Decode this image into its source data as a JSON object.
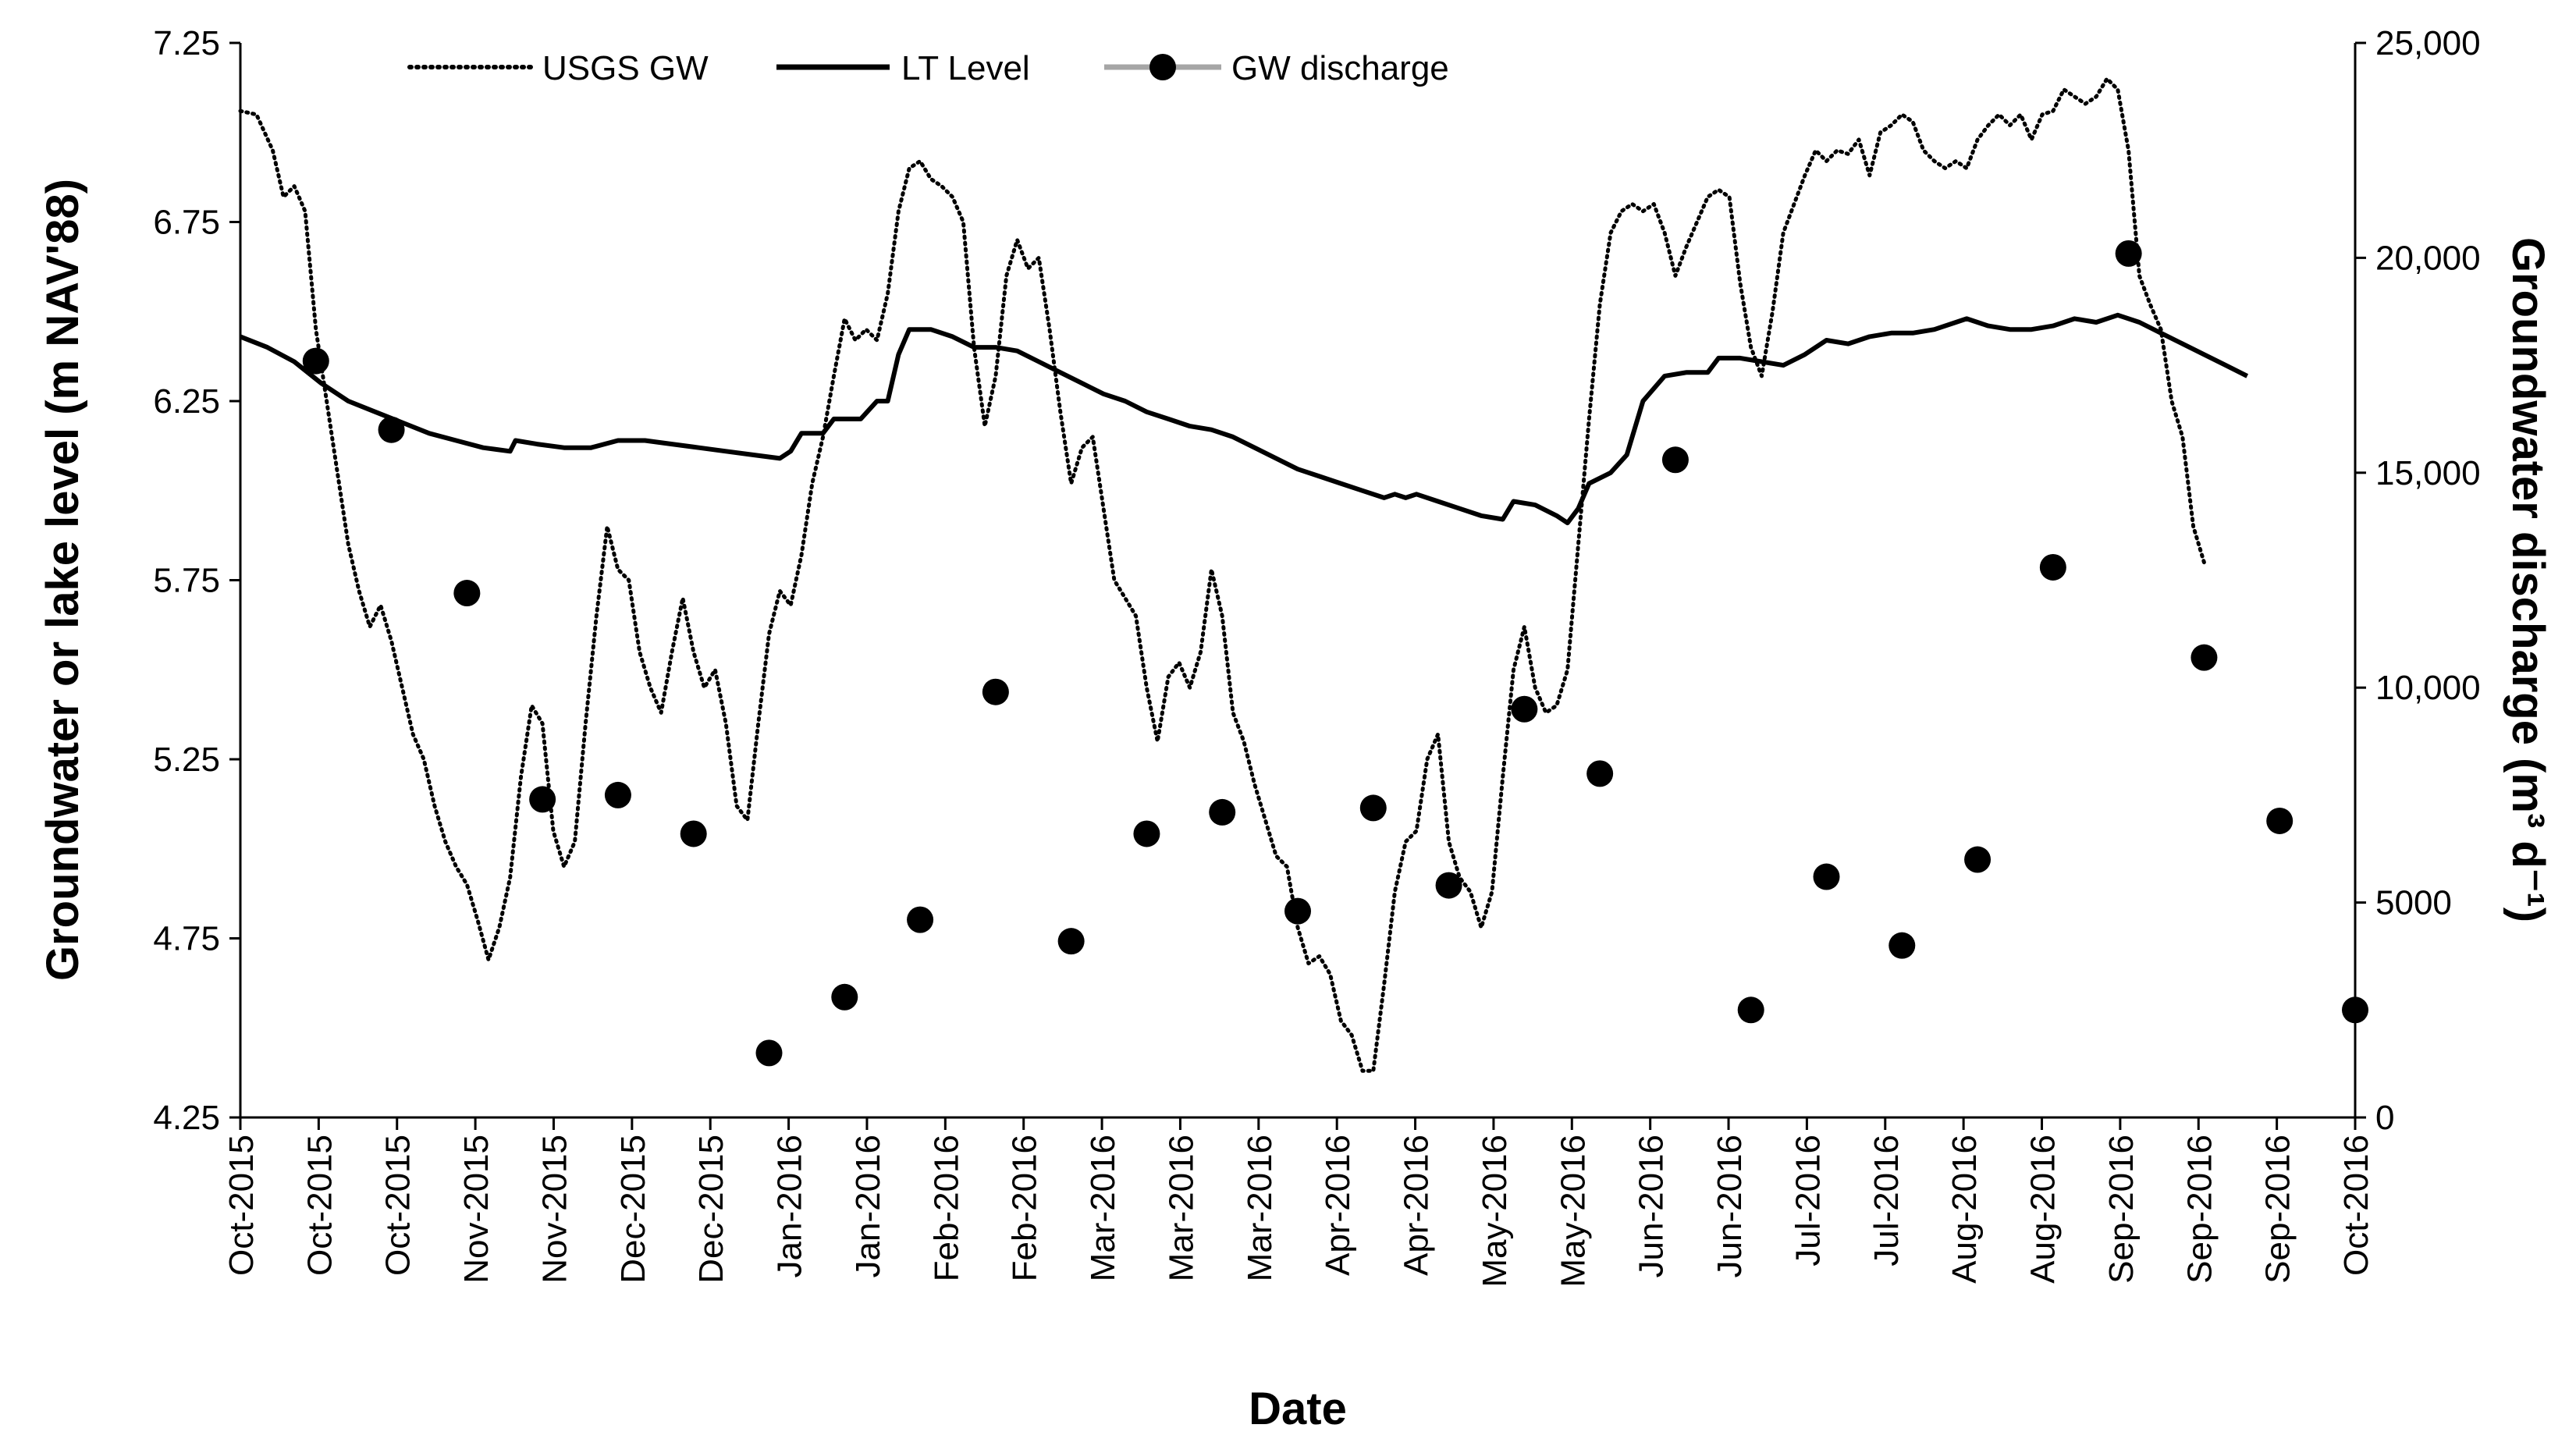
{
  "chart_data": {
    "type": "line",
    "xlabel": "Date",
    "ylabel_left": "Groundwater or lake level (m NAV'88)",
    "ylabel_right": "Groundwater discharge (m³ d⁻¹)",
    "ylim_left": [
      4.25,
      7.25
    ],
    "ylim_right": [
      0,
      25000
    ],
    "yticks_left": [
      "4.25",
      "4.75",
      "5.25",
      "5.75",
      "6.25",
      "6.75",
      "7.25"
    ],
    "yticks_right": [
      "0",
      "5000",
      "10,000",
      "15,000",
      "20,000",
      "25,000"
    ],
    "x_tick_labels": [
      "Oct-2015",
      "Oct-2015",
      "Oct-2015",
      "Nov-2015",
      "Nov-2015",
      "Dec-2015",
      "Dec-2015",
      "Jan-2016",
      "Jan-2016",
      "Feb-2016",
      "Feb-2016",
      "Mar-2016",
      "Mar-2016",
      "Mar-2016",
      "Apr-2016",
      "Apr-2016",
      "May-2016",
      "May-2016",
      "Jun-2016",
      "Jun-2016",
      "Jul-2016",
      "Jul-2016",
      "Aug-2016",
      "Aug-2016",
      "Sep-2016",
      "Sep-2016",
      "Sep-2016",
      "Oct-2016"
    ],
    "x_range_days": [
      0,
      392
    ],
    "legend": [
      "USGS GW",
      "LT Level",
      "GW discharge"
    ],
    "series": [
      {
        "name": "USGS GW",
        "axis": "left",
        "style": "dotted",
        "points": [
          [
            0,
            7.06
          ],
          [
            3,
            7.05
          ],
          [
            6,
            6.95
          ],
          [
            8,
            6.82
          ],
          [
            10,
            6.85
          ],
          [
            12,
            6.78
          ],
          [
            14,
            6.45
          ],
          [
            16,
            6.25
          ],
          [
            18,
            6.05
          ],
          [
            20,
            5.85
          ],
          [
            22,
            5.72
          ],
          [
            24,
            5.62
          ],
          [
            26,
            5.68
          ],
          [
            28,
            5.58
          ],
          [
            30,
            5.45
          ],
          [
            32,
            5.32
          ],
          [
            34,
            5.25
          ],
          [
            36,
            5.12
          ],
          [
            38,
            5.02
          ],
          [
            40,
            4.95
          ],
          [
            42,
            4.9
          ],
          [
            44,
            4.8
          ],
          [
            46,
            4.69
          ],
          [
            48,
            4.78
          ],
          [
            50,
            4.92
          ],
          [
            52,
            5.2
          ],
          [
            54,
            5.4
          ],
          [
            56,
            5.35
          ],
          [
            58,
            5.05
          ],
          [
            60,
            4.95
          ],
          [
            62,
            5.02
          ],
          [
            64,
            5.35
          ],
          [
            66,
            5.65
          ],
          [
            68,
            5.9
          ],
          [
            70,
            5.78
          ],
          [
            72,
            5.75
          ],
          [
            74,
            5.55
          ],
          [
            76,
            5.45
          ],
          [
            78,
            5.38
          ],
          [
            80,
            5.55
          ],
          [
            82,
            5.7
          ],
          [
            84,
            5.55
          ],
          [
            86,
            5.45
          ],
          [
            88,
            5.5
          ],
          [
            90,
            5.35
          ],
          [
            92,
            5.12
          ],
          [
            94,
            5.08
          ],
          [
            96,
            5.35
          ],
          [
            98,
            5.6
          ],
          [
            100,
            5.72
          ],
          [
            102,
            5.68
          ],
          [
            104,
            5.82
          ],
          [
            106,
            6.02
          ],
          [
            108,
            6.15
          ],
          [
            110,
            6.32
          ],
          [
            112,
            6.48
          ],
          [
            114,
            6.42
          ],
          [
            116,
            6.45
          ],
          [
            118,
            6.42
          ],
          [
            120,
            6.55
          ],
          [
            122,
            6.78
          ],
          [
            124,
            6.9
          ],
          [
            126,
            6.92
          ],
          [
            128,
            6.87
          ],
          [
            130,
            6.85
          ],
          [
            132,
            6.82
          ],
          [
            134,
            6.75
          ],
          [
            136,
            6.4
          ],
          [
            138,
            6.18
          ],
          [
            140,
            6.32
          ],
          [
            142,
            6.6
          ],
          [
            144,
            6.7
          ],
          [
            146,
            6.62
          ],
          [
            148,
            6.65
          ],
          [
            150,
            6.45
          ],
          [
            152,
            6.22
          ],
          [
            154,
            6.02
          ],
          [
            156,
            6.12
          ],
          [
            158,
            6.15
          ],
          [
            160,
            5.95
          ],
          [
            162,
            5.75
          ],
          [
            164,
            5.7
          ],
          [
            166,
            5.65
          ],
          [
            168,
            5.45
          ],
          [
            170,
            5.3
          ],
          [
            172,
            5.48
          ],
          [
            174,
            5.52
          ],
          [
            176,
            5.45
          ],
          [
            178,
            5.55
          ],
          [
            180,
            5.78
          ],
          [
            182,
            5.65
          ],
          [
            184,
            5.38
          ],
          [
            186,
            5.3
          ],
          [
            188,
            5.18
          ],
          [
            190,
            5.08
          ],
          [
            192,
            4.98
          ],
          [
            194,
            4.95
          ],
          [
            196,
            4.78
          ],
          [
            198,
            4.68
          ],
          [
            200,
            4.7
          ],
          [
            202,
            4.65
          ],
          [
            204,
            4.52
          ],
          [
            206,
            4.48
          ],
          [
            208,
            4.38
          ],
          [
            210,
            4.38
          ],
          [
            212,
            4.62
          ],
          [
            214,
            4.88
          ],
          [
            216,
            5.02
          ],
          [
            218,
            5.05
          ],
          [
            220,
            5.25
          ],
          [
            222,
            5.32
          ],
          [
            224,
            5.02
          ],
          [
            226,
            4.92
          ],
          [
            228,
            4.88
          ],
          [
            230,
            4.78
          ],
          [
            232,
            4.88
          ],
          [
            234,
            5.2
          ],
          [
            236,
            5.5
          ],
          [
            238,
            5.62
          ],
          [
            240,
            5.45
          ],
          [
            242,
            5.38
          ],
          [
            244,
            5.4
          ],
          [
            246,
            5.5
          ],
          [
            248,
            5.85
          ],
          [
            250,
            6.2
          ],
          [
            252,
            6.52
          ],
          [
            254,
            6.72
          ],
          [
            256,
            6.78
          ],
          [
            258,
            6.8
          ],
          [
            260,
            6.78
          ],
          [
            262,
            6.8
          ],
          [
            264,
            6.72
          ],
          [
            266,
            6.6
          ],
          [
            268,
            6.68
          ],
          [
            270,
            6.75
          ],
          [
            272,
            6.82
          ],
          [
            274,
            6.84
          ],
          [
            276,
            6.82
          ],
          [
            278,
            6.58
          ],
          [
            280,
            6.4
          ],
          [
            282,
            6.32
          ],
          [
            284,
            6.5
          ],
          [
            286,
            6.72
          ],
          [
            288,
            6.8
          ],
          [
            290,
            6.88
          ],
          [
            292,
            6.95
          ],
          [
            294,
            6.92
          ],
          [
            296,
            6.95
          ],
          [
            298,
            6.94
          ],
          [
            300,
            6.98
          ],
          [
            302,
            6.88
          ],
          [
            304,
            7.0
          ],
          [
            306,
            7.02
          ],
          [
            308,
            7.05
          ],
          [
            310,
            7.03
          ],
          [
            312,
            6.95
          ],
          [
            314,
            6.92
          ],
          [
            316,
            6.9
          ],
          [
            318,
            6.92
          ],
          [
            320,
            6.9
          ],
          [
            322,
            6.98
          ],
          [
            324,
            7.02
          ],
          [
            326,
            7.05
          ],
          [
            328,
            7.02
          ],
          [
            330,
            7.05
          ],
          [
            332,
            6.98
          ],
          [
            334,
            7.05
          ],
          [
            336,
            7.06
          ],
          [
            338,
            7.12
          ],
          [
            340,
            7.1
          ],
          [
            342,
            7.08
          ],
          [
            344,
            7.1
          ],
          [
            346,
            7.15
          ],
          [
            348,
            7.12
          ],
          [
            350,
            6.95
          ],
          [
            352,
            6.6
          ],
          [
            354,
            6.52
          ],
          [
            356,
            6.45
          ],
          [
            358,
            6.25
          ],
          [
            360,
            6.15
          ],
          [
            362,
            5.9
          ],
          [
            364,
            5.8
          ]
        ]
      },
      {
        "name": "LT Level",
        "axis": "left",
        "style": "solid",
        "points": [
          [
            0,
            6.43
          ],
          [
            5,
            6.4
          ],
          [
            10,
            6.36
          ],
          [
            15,
            6.3
          ],
          [
            20,
            6.25
          ],
          [
            25,
            6.22
          ],
          [
            30,
            6.19
          ],
          [
            35,
            6.16
          ],
          [
            40,
            6.14
          ],
          [
            45,
            6.12
          ],
          [
            50,
            6.11
          ],
          [
            51,
            6.14
          ],
          [
            55,
            6.13
          ],
          [
            60,
            6.12
          ],
          [
            65,
            6.12
          ],
          [
            70,
            6.14
          ],
          [
            75,
            6.14
          ],
          [
            80,
            6.13
          ],
          [
            85,
            6.12
          ],
          [
            90,
            6.11
          ],
          [
            95,
            6.1
          ],
          [
            100,
            6.09
          ],
          [
            102,
            6.11
          ],
          [
            104,
            6.16
          ],
          [
            108,
            6.16
          ],
          [
            110,
            6.2
          ],
          [
            115,
            6.2
          ],
          [
            118,
            6.25
          ],
          [
            120,
            6.25
          ],
          [
            122,
            6.38
          ],
          [
            124,
            6.45
          ],
          [
            128,
            6.45
          ],
          [
            132,
            6.43
          ],
          [
            136,
            6.4
          ],
          [
            140,
            6.4
          ],
          [
            144,
            6.39
          ],
          [
            148,
            6.36
          ],
          [
            152,
            6.33
          ],
          [
            156,
            6.3
          ],
          [
            160,
            6.27
          ],
          [
            164,
            6.25
          ],
          [
            168,
            6.22
          ],
          [
            172,
            6.2
          ],
          [
            176,
            6.18
          ],
          [
            180,
            6.17
          ],
          [
            184,
            6.15
          ],
          [
            188,
            6.12
          ],
          [
            192,
            6.09
          ],
          [
            196,
            6.06
          ],
          [
            200,
            6.04
          ],
          [
            204,
            6.02
          ],
          [
            208,
            6.0
          ],
          [
            212,
            5.98
          ],
          [
            214,
            5.99
          ],
          [
            216,
            5.98
          ],
          [
            218,
            5.99
          ],
          [
            222,
            5.97
          ],
          [
            226,
            5.95
          ],
          [
            230,
            5.93
          ],
          [
            234,
            5.92
          ],
          [
            236,
            5.97
          ],
          [
            240,
            5.96
          ],
          [
            244,
            5.93
          ],
          [
            246,
            5.91
          ],
          [
            248,
            5.95
          ],
          [
            250,
            6.02
          ],
          [
            254,
            6.05
          ],
          [
            257,
            6.1
          ],
          [
            260,
            6.25
          ],
          [
            264,
            6.32
          ],
          [
            268,
            6.33
          ],
          [
            272,
            6.33
          ],
          [
            274,
            6.37
          ],
          [
            278,
            6.37
          ],
          [
            282,
            6.36
          ],
          [
            286,
            6.35
          ],
          [
            290,
            6.38
          ],
          [
            294,
            6.42
          ],
          [
            298,
            6.41
          ],
          [
            302,
            6.43
          ],
          [
            306,
            6.44
          ],
          [
            310,
            6.44
          ],
          [
            314,
            6.45
          ],
          [
            318,
            6.47
          ],
          [
            320,
            6.48
          ],
          [
            324,
            6.46
          ],
          [
            328,
            6.45
          ],
          [
            332,
            6.45
          ],
          [
            336,
            6.46
          ],
          [
            340,
            6.48
          ],
          [
            344,
            6.47
          ],
          [
            348,
            6.49
          ],
          [
            352,
            6.47
          ],
          [
            356,
            6.44
          ],
          [
            360,
            6.41
          ],
          [
            364,
            6.38
          ],
          [
            368,
            6.35
          ],
          [
            372,
            6.32
          ]
        ]
      },
      {
        "name": "GW discharge",
        "axis": "right",
        "style": "markers",
        "points": [
          [
            14,
            17600
          ],
          [
            28,
            16000
          ],
          [
            42,
            12200
          ],
          [
            56,
            7400
          ],
          [
            70,
            7500
          ],
          [
            84,
            6600
          ],
          [
            98,
            1500
          ],
          [
            112,
            2800
          ],
          [
            126,
            4600
          ],
          [
            140,
            9900
          ],
          [
            154,
            4100
          ],
          [
            168,
            6600
          ],
          [
            182,
            7100
          ],
          [
            196,
            4800
          ],
          [
            210,
            7200
          ],
          [
            224,
            5400
          ],
          [
            238,
            9500
          ],
          [
            252,
            8000
          ],
          [
            266,
            15300
          ],
          [
            280,
            2500
          ],
          [
            294,
            5600
          ],
          [
            308,
            4000
          ],
          [
            322,
            6000
          ],
          [
            336,
            12800
          ],
          [
            350,
            20100
          ],
          [
            364,
            10700
          ],
          [
            378,
            6900
          ],
          [
            392,
            2500
          ]
        ]
      }
    ]
  }
}
